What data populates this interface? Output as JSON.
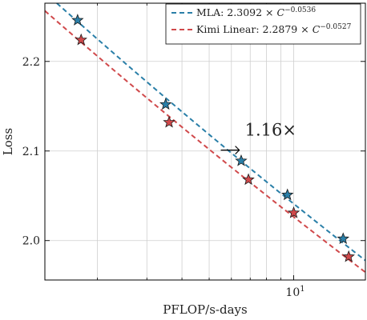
{
  "chart_data": {
    "type": "scatter",
    "title": "",
    "xlabel": "PFLOP/s-days",
    "ylabel": "Loss",
    "x_scale": "log",
    "xlim": [
      1.3,
      18
    ],
    "ylim": [
      1.956,
      2.265
    ],
    "x_ticks": [
      {
        "value": 10,
        "label": "10",
        "exponent": "1"
      }
    ],
    "x_minor_ticks": [
      2,
      3,
      4,
      5,
      6,
      7,
      8,
      9
    ],
    "y_ticks": [
      {
        "value": 2.0,
        "label": "2.0"
      },
      {
        "value": 2.1,
        "label": "2.1"
      },
      {
        "value": 2.2,
        "label": "2.2"
      }
    ],
    "grid": true,
    "legend": "top-right",
    "series": [
      {
        "name": "MLA: 2.3092 × C^−0.0536",
        "legend_label": {
          "text": "MLA: 2.3092 ×",
          "base": "C",
          "exponent": "−0.0536"
        },
        "color": "#2a7fa8",
        "coef": 2.3092,
        "exp": -0.0536,
        "x": [
          1.7,
          3.5,
          6.5,
          9.5,
          15.0
        ],
        "y": [
          2.246,
          2.152,
          2.089,
          2.051,
          2.002
        ]
      },
      {
        "name": "Kimi Linear: 2.2879 × C^−0.0527",
        "legend_label": {
          "text": "Kimi Linear: 2.2879 ×",
          "base": "C",
          "exponent": "−0.0527"
        },
        "color": "#d0494b",
        "coef": 2.2879,
        "exp": -0.0527,
        "x": [
          1.75,
          3.6,
          6.9,
          10.0,
          15.7
        ],
        "y": [
          2.224,
          2.132,
          2.068,
          2.031,
          1.982
        ]
      }
    ],
    "annotations": [
      {
        "text": "1.16×",
        "x": 6.7,
        "y": 2.117
      },
      {
        "type": "arrow",
        "x_from": 5.5,
        "x_to": 6.4,
        "y": 2.101
      }
    ]
  }
}
